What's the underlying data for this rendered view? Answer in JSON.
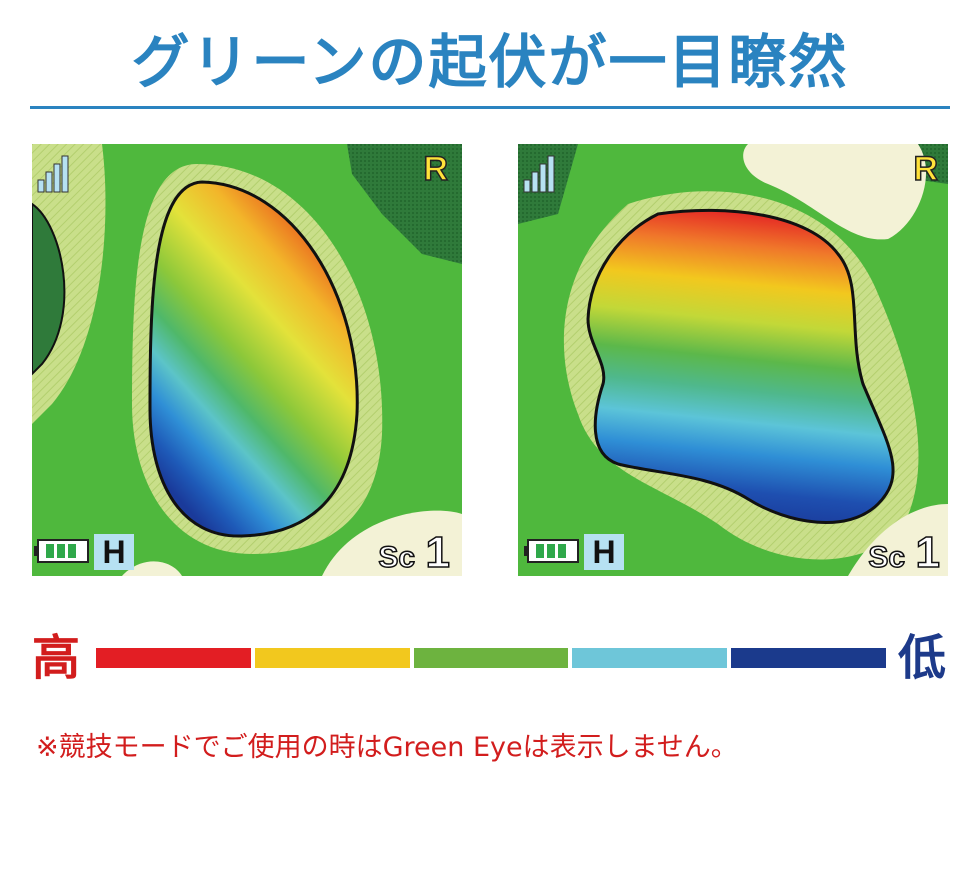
{
  "title": "グリーンの起伏が一目瞭然",
  "colors": {
    "title": "#2a83c0",
    "rule": "#2a83c0",
    "note": "#d21d1d",
    "high_label": "#d21d1d",
    "low_label": "#1d3a8a",
    "fairway": "#4fb83d",
    "rough_dark": "#2f7a3a",
    "fringe": "#c9df8a",
    "bunker": "#f3f2d6",
    "outline": "#111111",
    "hud": "#ffe23a"
  },
  "screens": [
    {
      "id": "left",
      "hud": {
        "wind_mark": "R",
        "mode": "H",
        "score_label": "Sc",
        "score_value": "1"
      }
    },
    {
      "id": "right",
      "hud": {
        "wind_mark": "R",
        "mode": "H",
        "score_label": "Sc",
        "score_value": "1"
      }
    }
  ],
  "legend": {
    "high": "高",
    "low": "低",
    "segments": [
      "#e31e24",
      "#f2c81e",
      "#6db33f",
      "#6ec6d9",
      "#1b3a8c"
    ]
  },
  "note": "※競技モードでご使用の時はGreen Eyeは表示しません。"
}
